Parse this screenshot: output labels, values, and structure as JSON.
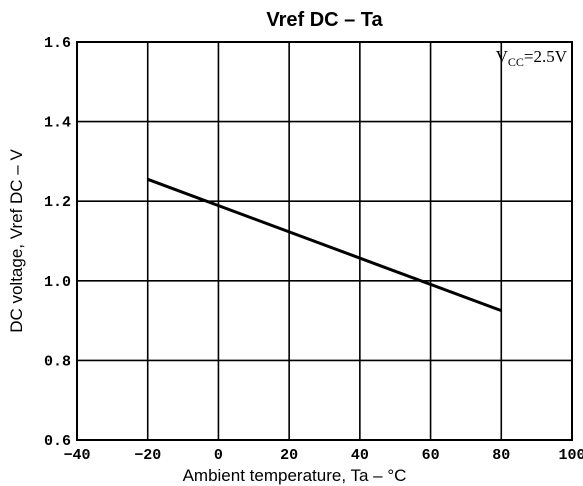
{
  "chart_data": {
    "type": "line",
    "title": "Vref DC – Ta",
    "xlabel": "Ambient temperature, Ta – °C",
    "ylabel": "DC voltage, Vref DC – V",
    "xlim": [
      -40,
      100
    ],
    "ylim": [
      0.6,
      1.6
    ],
    "xticks": [
      -40,
      -20,
      0,
      20,
      40,
      60,
      80,
      100
    ],
    "xtick_labels": [
      "−40",
      "−20",
      "0",
      "20",
      "40",
      "60",
      "80",
      "100"
    ],
    "yticks": [
      0.6,
      0.8,
      1.0,
      1.2,
      1.4,
      1.6
    ],
    "ytick_labels": [
      "0.6",
      "0.8",
      "1.0",
      "1.2",
      "1.4",
      "1.6"
    ],
    "grid": true,
    "annotation": {
      "base": "V",
      "subscript": "CC",
      "value": "=2.5V"
    },
    "series": [
      {
        "x": [
          -20,
          80
        ],
        "y": [
          1.255,
          0.925
        ]
      }
    ]
  }
}
